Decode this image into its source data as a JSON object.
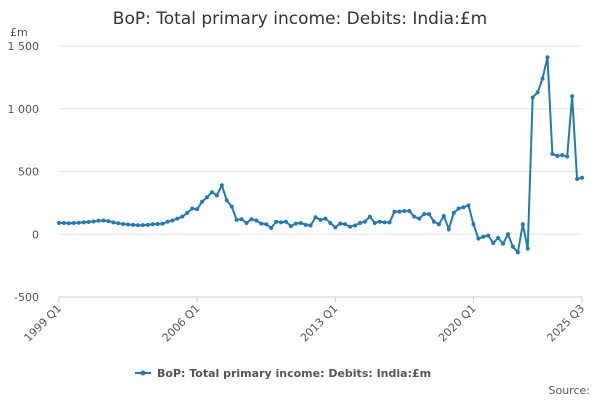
{
  "chart_data": {
    "type": "line",
    "title": "BoP: Total primary income: Debits: India:£m",
    "y_unit_label": "£m",
    "source_label": "Source:",
    "categories": [
      "1999 Q1",
      null,
      null,
      null,
      null,
      null,
      null,
      null,
      null,
      null,
      null,
      null,
      null,
      null,
      null,
      null,
      null,
      null,
      null,
      null,
      null,
      null,
      null,
      null,
      null,
      null,
      null,
      null,
      "2006 Q1",
      null,
      null,
      null,
      null,
      null,
      null,
      null,
      null,
      null,
      null,
      null,
      null,
      null,
      null,
      null,
      null,
      null,
      null,
      null,
      null,
      null,
      null,
      null,
      null,
      null,
      null,
      null,
      "2013 Q1",
      null,
      null,
      null,
      null,
      null,
      null,
      null,
      null,
      null,
      null,
      null,
      null,
      null,
      null,
      null,
      null,
      null,
      null,
      null,
      null,
      null,
      null,
      null,
      null,
      null,
      null,
      null,
      "2020 Q1",
      null,
      null,
      null,
      null,
      null,
      null,
      null,
      null,
      null,
      null,
      null,
      null,
      null,
      null,
      null,
      null,
      null,
      null,
      null,
      null,
      null,
      "2025 Q3"
    ],
    "series": [
      {
        "name": "BoP: Total primary income: Debits: India:£m",
        "color": "#1f7bb6",
        "values": [
          90,
          90,
          88,
          90,
          92,
          95,
          98,
          102,
          108,
          110,
          105,
          95,
          88,
          82,
          78,
          75,
          72,
          73,
          75,
          80,
          82,
          85,
          100,
          110,
          125,
          140,
          170,
          205,
          200,
          260,
          295,
          335,
          310,
          390,
          270,
          220,
          115,
          120,
          90,
          120,
          110,
          85,
          80,
          50,
          100,
          95,
          100,
          65,
          85,
          90,
          75,
          70,
          135,
          115,
          125,
          90,
          55,
          85,
          80,
          60,
          70,
          90,
          100,
          140,
          90,
          100,
          95,
          95,
          180,
          180,
          185,
          185,
          140,
          125,
          160,
          160,
          100,
          80,
          145,
          40,
          170,
          205,
          215,
          230,
          80,
          -35,
          -20,
          -10,
          -70,
          -30,
          -75,
          0,
          -100,
          -145,
          80,
          -115,
          1090,
          1130,
          1240,
          1410,
          640,
          625,
          630,
          620,
          1100,
          440,
          450
        ]
      }
    ],
    "ylim": [
      -500,
      1500
    ],
    "yticks": [
      -500,
      0,
      500,
      {
        "value": 1000,
        "label": "1 000"
      },
      {
        "value": 1500,
        "label": "1 500"
      }
    ],
    "grid": true,
    "legend": "bottom"
  }
}
